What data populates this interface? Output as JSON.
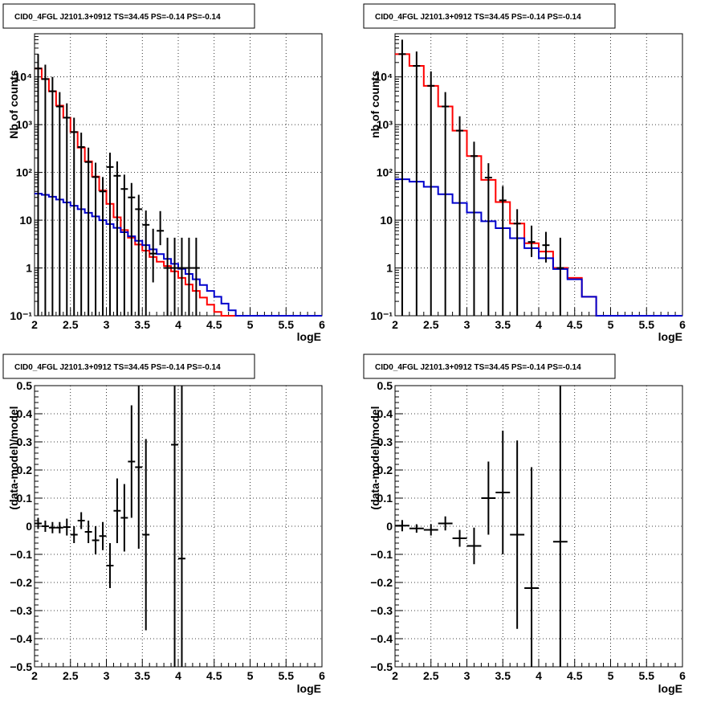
{
  "colors": {
    "data": "#000000",
    "total_model": "#ff0000",
    "bkg_model": "#0000cc",
    "grid": "#000000",
    "background": "#ffffff"
  },
  "pads": [
    {
      "title": "CID0_4FGL J2101.3+0912 TS=34.45 PS=-0.14 PS=-0.14",
      "xlabel": "logE",
      "ylabel": "Nb of counts",
      "x_ticks": [
        "2",
        "2.5",
        "3",
        "3.5",
        "4",
        "4.5",
        "5",
        "5.5",
        "6"
      ],
      "y_ticks": [
        "10⁻¹",
        "1",
        "10",
        "10²",
        "10³",
        "10⁴"
      ]
    },
    {
      "title": "CID0_4FGL J2101.3+0912 TS=34.45 PS=-0.14 PS=-0.14",
      "xlabel": "logE",
      "ylabel": "nb of counts",
      "x_ticks": [
        "2",
        "2.5",
        "3",
        "3.5",
        "4",
        "4.5",
        "5",
        "5.5",
        "6"
      ],
      "y_ticks": [
        "10⁻¹",
        "1",
        "10",
        "10²",
        "10³",
        "10⁴"
      ]
    },
    {
      "title": "CID0_4FGL J2101.3+0912 TS=34.45 PS=-0.14 PS=-0.14",
      "xlabel": "logE",
      "ylabel": "(data-model)/model",
      "x_ticks": [
        "2",
        "2.5",
        "3",
        "3.5",
        "4",
        "4.5",
        "5",
        "5.5",
        "6"
      ],
      "y_ticks": [
        "−0.5",
        "−0.4",
        "−0.3",
        "−0.2",
        "−0.1",
        "0",
        "0.1",
        "0.2",
        "0.3",
        "0.4",
        "0.5"
      ]
    },
    {
      "title": "CID0_4FGL J2101.3+0912 TS=34.45 PS=-0.14 PS=-0.14",
      "xlabel": "logE",
      "ylabel": "(data-model)/model",
      "x_ticks": [
        "2",
        "2.5",
        "3",
        "3.5",
        "4",
        "4.5",
        "5",
        "5.5",
        "6"
      ],
      "y_ticks": [
        "−0.5",
        "−0.4",
        "−0.3",
        "−0.2",
        "−0.1",
        "0",
        "0.1",
        "0.2",
        "0.3",
        "0.4",
        "0.5"
      ]
    }
  ],
  "chart_data": [
    {
      "type": "line",
      "scale_y": "log",
      "xlim": [
        2,
        6
      ],
      "ylim": [
        0.1,
        80000
      ],
      "grid": true,
      "bin_edges": [
        2.0,
        2.1,
        2.2,
        2.3,
        2.4,
        2.5,
        2.6,
        2.7,
        2.8,
        2.9,
        3.0,
        3.1,
        3.2,
        3.3,
        3.4,
        3.5,
        3.6,
        3.7,
        3.8,
        3.9,
        4.0,
        4.1,
        4.2,
        4.3,
        4.4,
        4.5,
        4.6,
        4.7,
        4.8,
        4.9,
        5.0,
        5.1,
        5.2,
        5.3,
        5.4,
        5.5,
        5.6,
        5.7,
        5.8,
        5.9,
        6.0
      ],
      "series": [
        {
          "role": "total_model",
          "values": [
            15000,
            9000,
            5000,
            2500,
            1400,
            700,
            330,
            170,
            82,
            42,
            22,
            11.5,
            6.2,
            4.3,
            3.1,
            2.3,
            1.7,
            1.35,
            1.1,
            0.85,
            0.62,
            0.45,
            0.33,
            0.24,
            0.17,
            0.12,
            0.1,
            0.1,
            0.1,
            0.1,
            0.1,
            0.1,
            0.1,
            0.1,
            0.1,
            0.1,
            0.1,
            0.1,
            0.1,
            0.1
          ]
        },
        {
          "role": "bkg_model",
          "values": [
            36,
            34,
            31,
            27,
            23.5,
            20,
            17,
            14.3,
            12,
            10,
            8.3,
            6.9,
            5.6,
            4.6,
            3.7,
            3.0,
            2.45,
            1.95,
            1.55,
            1.22,
            0.96,
            0.75,
            0.58,
            0.44,
            0.33,
            0.25,
            0.18,
            0.13,
            0.1,
            0.1,
            0.1,
            0.1,
            0.1,
            0.1,
            0.1,
            0.1,
            0.1,
            0.1,
            0.1,
            0.1
          ]
        },
        {
          "role": "data",
          "x": [
            2.05,
            2.15,
            2.25,
            2.35,
            2.45,
            2.55,
            2.65,
            2.75,
            2.85,
            2.95,
            3.05,
            3.15,
            3.25,
            3.35,
            3.45,
            3.55,
            3.65,
            3.75,
            3.85,
            3.95,
            4.05,
            4.15,
            4.25
          ],
          "y": [
            15000,
            9000,
            5000,
            2400,
            1400,
            700,
            340,
            165,
            80,
            40,
            130,
            85,
            45,
            30,
            17,
            8,
            2,
            6,
            1,
            1,
            1,
            1,
            1
          ],
          "yerr_lo": [
            15000,
            9000,
            5000,
            2400,
            1400,
            700,
            340,
            165,
            80,
            40,
            130,
            85,
            45,
            30,
            17,
            8,
            1.5,
            3,
            0.9,
            0.9,
            0.9,
            0.9,
            0.9
          ],
          "yerr_hi": [
            15000,
            9000,
            5000,
            2400,
            1400,
            700,
            340,
            165,
            80,
            40,
            130,
            85,
            45,
            30,
            17,
            8,
            4.6,
            9.5,
            3.3,
            3.3,
            3.3,
            3.3,
            3.3
          ]
        }
      ]
    },
    {
      "type": "line",
      "scale_y": "log",
      "xlim": [
        2,
        6
      ],
      "ylim": [
        0.1,
        80000
      ],
      "grid": true,
      "bin_edges": [
        2.0,
        2.2,
        2.4,
        2.6,
        2.8,
        3.0,
        3.2,
        3.4,
        3.6,
        3.8,
        4.0,
        4.2,
        4.4,
        4.6,
        4.8,
        5.0,
        5.2,
        5.4,
        5.6,
        5.8,
        6.0
      ],
      "series": [
        {
          "role": "total_model",
          "values": [
            30000,
            17000,
            6500,
            2400,
            750,
            220,
            70,
            24,
            8.5,
            3.3,
            2.2,
            1.0,
            0.62,
            0.25,
            0.1,
            0.1,
            0.1,
            0.1,
            0.1,
            0.1
          ]
        },
        {
          "role": "bkg_model",
          "values": [
            72,
            64,
            50,
            35,
            23,
            14.5,
            9.5,
            6.8,
            4.2,
            2.6,
            1.6,
            0.95,
            0.58,
            0.25,
            0.1,
            0.1,
            0.1,
            0.1,
            0.1,
            0.1
          ]
        },
        {
          "role": "data",
          "x": [
            2.1,
            2.3,
            2.5,
            2.7,
            2.9,
            3.1,
            3.3,
            3.5,
            3.7,
            3.9,
            4.1,
            4.3
          ],
          "y": [
            30000,
            17000,
            6500,
            2400,
            750,
            220,
            78,
            26,
            8.5,
            3.5,
            3.0,
            1.0
          ],
          "yerr_lo": [
            30000,
            17000,
            6500,
            2400,
            750,
            220,
            78,
            26,
            8.5,
            1.8,
            1.7,
            0.9
          ],
          "yerr_hi": [
            30000,
            17000,
            6500,
            2400,
            750,
            220,
            78,
            26,
            8.5,
            4.2,
            2.7,
            3.3
          ]
        }
      ]
    },
    {
      "type": "scatter",
      "xlim": [
        2,
        6
      ],
      "ylim": [
        -0.5,
        0.5
      ],
      "grid": true,
      "series": [
        {
          "role": "data",
          "x": [
            2.05,
            2.15,
            2.25,
            2.35,
            2.45,
            2.55,
            2.65,
            2.75,
            2.85,
            2.95,
            3.05,
            3.15,
            3.25,
            3.35,
            3.45,
            3.55,
            3.95,
            4.05
          ],
          "y": [
            0.01,
            0.0,
            -0.005,
            -0.005,
            -0.003,
            -0.03,
            0.02,
            -0.02,
            -0.05,
            -0.035,
            -0.14,
            0.055,
            0.03,
            0.23,
            0.21,
            -0.03,
            0.29,
            -0.115
          ],
          "yerr": [
            0.02,
            0.02,
            0.02,
            0.02,
            0.03,
            0.03,
            0.03,
            0.04,
            0.05,
            0.05,
            0.08,
            0.115,
            0.12,
            0.2,
            0.29,
            0.34,
            1.5,
            1.5
          ],
          "xerr": [
            0.05,
            0.05,
            0.05,
            0.05,
            0.05,
            0.05,
            0.05,
            0.05,
            0.05,
            0.05,
            0.05,
            0.05,
            0.05,
            0.05,
            0.05,
            0.05,
            0.05,
            0.05
          ]
        }
      ]
    },
    {
      "type": "scatter",
      "xlim": [
        2,
        6
      ],
      "ylim": [
        -0.5,
        0.5
      ],
      "grid": true,
      "series": [
        {
          "role": "data",
          "x": [
            2.1,
            2.3,
            2.5,
            2.7,
            2.9,
            3.1,
            3.3,
            3.5,
            3.7,
            3.9,
            4.3
          ],
          "y": [
            0.002,
            -0.008,
            -0.013,
            0.01,
            -0.043,
            -0.07,
            0.1,
            0.12,
            -0.03,
            -0.22,
            -0.055
          ],
          "yerr": [
            0.02,
            0.015,
            0.02,
            0.025,
            0.03,
            0.065,
            0.13,
            0.22,
            0.335,
            0.43,
            1.5
          ],
          "xerr": [
            0.1,
            0.1,
            0.1,
            0.1,
            0.1,
            0.1,
            0.1,
            0.1,
            0.1,
            0.1,
            0.1
          ]
        }
      ]
    }
  ]
}
